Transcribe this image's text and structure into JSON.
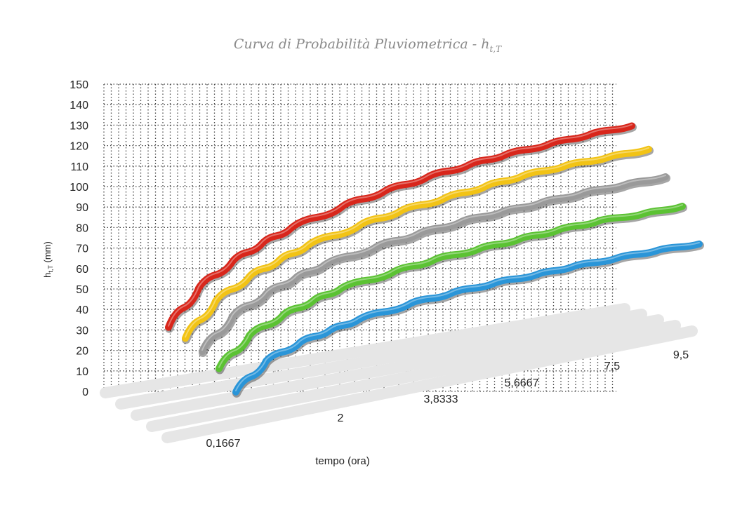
{
  "chart_data": {
    "type": "line",
    "title": "Curva di Probabilità Pluviometrica - h",
    "title_subscript": "t,T",
    "xlabel": "tempo (ora)",
    "ylabel": "h",
    "ylabel_subscript": "t,T",
    "ylabel_unit": "(mm)",
    "ylim": [
      0,
      150
    ],
    "yticks": [
      0,
      10,
      20,
      30,
      40,
      50,
      60,
      70,
      80,
      90,
      100,
      110,
      120,
      130,
      140,
      150
    ],
    "xticks": [
      "0,1667",
      "2",
      "3,8333",
      "5,6667",
      "7,5",
      "9,5"
    ],
    "grid": true,
    "x": [
      0.1667,
      0.5,
      1,
      1.5,
      2,
      3,
      3.8333,
      4.75,
      5.6667,
      6.5,
      7.5,
      8.5,
      9.5
    ],
    "series": [
      {
        "color": "#d8261b",
        "values": [
          38,
          57,
          70,
          79,
          86,
          97,
          104,
          111,
          117,
          122,
          127,
          132,
          136
        ]
      },
      {
        "color": "#f2c315",
        "values": [
          34,
          52,
          64,
          72,
          79,
          89,
          96,
          102,
          108,
          113,
          118,
          122,
          126
        ]
      },
      {
        "color": "#9a9a9a",
        "values": [
          29,
          46,
          57,
          65,
          71,
          80,
          86,
          92,
          97,
          101,
          106,
          110,
          114
        ]
      },
      {
        "color": "#5bc233",
        "values": [
          22,
          38,
          48,
          55,
          61,
          69,
          75,
          80,
          85,
          89,
          94,
          97,
          101
        ]
      },
      {
        "color": "#2a95d8",
        "values": [
          12,
          27,
          36,
          42,
          47,
          55,
          60,
          65,
          69,
          73,
          77,
          81,
          84
        ]
      }
    ]
  }
}
